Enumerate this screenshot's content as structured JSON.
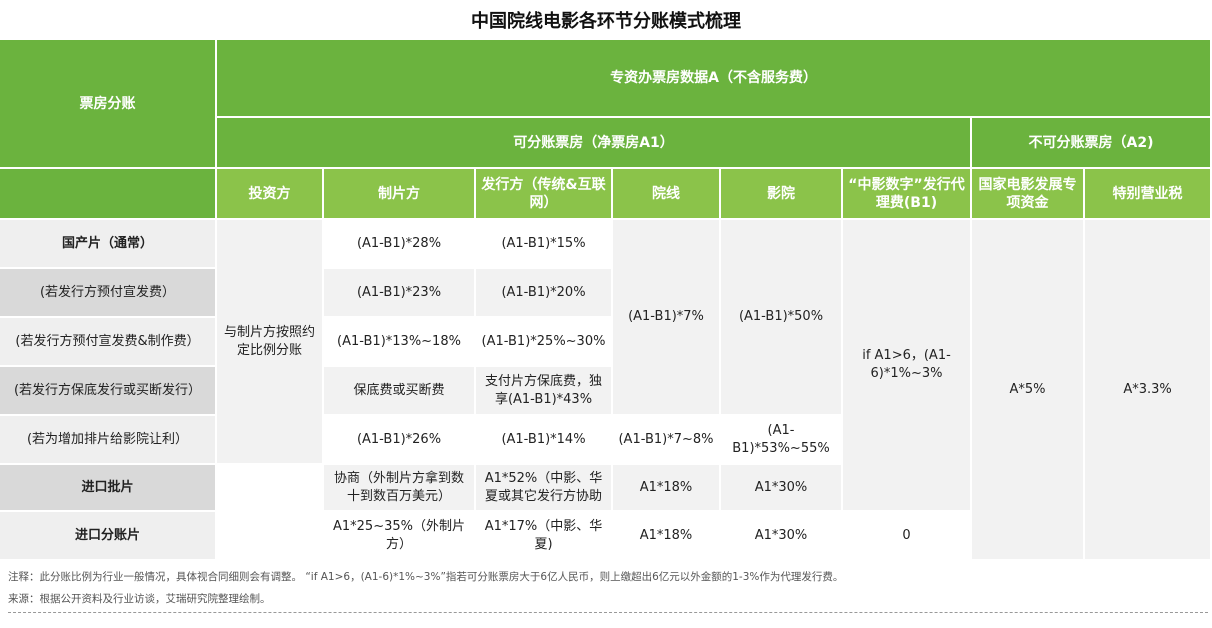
{
  "title": "中国院线电影各环节分账模式梳理",
  "header": {
    "box_office_share": "票房分账",
    "total_box_office": "专资办票房数据A（不含服务费）",
    "shareable": "可分账票房（净票房A1）",
    "non_shareable": "不可分账票房（A2)",
    "columns": {
      "investor": "投资方",
      "producer": "制片方",
      "distributor": "发行方（传统&互联网）",
      "theater_chain": "院线",
      "cinema": "影院",
      "agency_fee": "“中影数字”发行代理费(B1)",
      "special_fund": "国家电影发展专项资金",
      "business_tax": "特别营业税"
    }
  },
  "rows": {
    "domestic_normal": {
      "label": "国产片（通常）",
      "producer": "(A1-B1)*28%",
      "distributor": "(A1-B1)*15%"
    },
    "prepay_promo": {
      "label": "(若发行方预付宣发费）",
      "producer": "(A1-B1)*23%",
      "distributor": "(A1-B1)*20%"
    },
    "prepay_promo_production": {
      "label": "(若发行方预付宣发费&制作费）",
      "producer": "(A1-B1)*13%~18%",
      "distributor": "(A1-B1)*25%~30%"
    },
    "guarantee_buyout": {
      "label": "(若发行方保底发行或买断发行）",
      "producer": "保底费或买断费",
      "distributor": "支付片方保底费，独享(A1-B1)*43%"
    },
    "more_screenings": {
      "label": "(若为增加排片给影院让利）",
      "producer": "(A1-B1)*26%",
      "distributor": "(A1-B1)*14%",
      "theater_chain": "(A1-B1)*7~8%",
      "cinema": "(A1-B1)*53%~55%"
    },
    "import_batch": {
      "label": "进口批片",
      "producer": "协商（外制片方拿到数十到数百万美元）",
      "distributor": "A1*52%（中影、华夏或其它发行方协助",
      "theater_chain": "A1*18%",
      "cinema": "A1*30%"
    },
    "import_share": {
      "label": "进口分账片",
      "producer": "A1*25~35%（外制片方）",
      "distributor": "A1*17%（中影、华夏)",
      "theater_chain": "A1*18%",
      "cinema": "A1*30%",
      "agency_fee": "0"
    }
  },
  "merged": {
    "investor": "与制片方按照约定比例分账",
    "theater_chain_domestic": "(A1-B1)*7%",
    "cinema_domestic": "(A1-B1)*50%",
    "agency_fee_domestic": "if A1>6，(A1-6)*1%~3%",
    "special_fund": "A*5%",
    "business_tax": "A*3.3%"
  },
  "notes": {
    "note": "注释：此分账比例为行业一般情况，具体视合同细则会有调整。 “if A1>6，(A1-6)*1%~3%”指若可分账票房大于6亿人民币，则上缴超出6亿元以外金额的1-3%作为代理发行费。",
    "source": "来源：根据公开资料及行业访谈，艾瑞研究院整理绘制。"
  },
  "colors": {
    "header_dark": "#6bb33e",
    "header_light": "#8bc34a",
    "label_dark": "#d9d9d9",
    "label_light": "#efefef"
  }
}
